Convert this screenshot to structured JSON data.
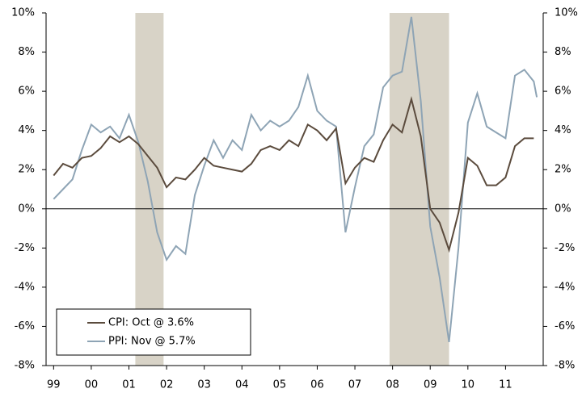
{
  "chart_data": {
    "type": "line",
    "x": [
      1999.0,
      1999.25,
      1999.5,
      1999.75,
      2000.0,
      2000.25,
      2000.5,
      2000.75,
      2001.0,
      2001.25,
      2001.5,
      2001.75,
      2002.0,
      2002.25,
      2002.5,
      2002.75,
      2003.0,
      2003.25,
      2003.5,
      2003.75,
      2004.0,
      2004.25,
      2004.5,
      2004.75,
      2005.0,
      2005.25,
      2005.5,
      2005.75,
      2006.0,
      2006.25,
      2006.5,
      2006.75,
      2007.0,
      2007.25,
      2007.5,
      2007.75,
      2008.0,
      2008.25,
      2008.5,
      2008.75,
      2009.0,
      2009.25,
      2009.5,
      2009.75,
      2010.0,
      2010.25,
      2010.5,
      2010.75,
      2011.0,
      2011.25,
      2011.5,
      2011.75,
      2011.83
    ],
    "series": [
      {
        "name": "CPI: Oct @ 3.6%",
        "color": "#5b4b3d",
        "values": [
          1.7,
          2.3,
          2.1,
          2.6,
          2.7,
          3.1,
          3.7,
          3.4,
          3.7,
          3.3,
          2.7,
          2.1,
          1.1,
          1.6,
          1.5,
          2.0,
          2.6,
          2.2,
          2.1,
          2.0,
          1.9,
          2.3,
          3.0,
          3.2,
          3.0,
          3.5,
          3.2,
          4.3,
          4.0,
          3.5,
          4.1,
          1.3,
          2.1,
          2.6,
          2.4,
          3.5,
          4.3,
          3.9,
          5.6,
          3.7,
          0.0,
          -0.7,
          -2.1,
          -0.2,
          2.6,
          2.2,
          1.2,
          1.2,
          1.6,
          3.2,
          3.6,
          3.6,
          null
        ]
      },
      {
        "name": "PPI: Nov @ 5.7%",
        "color": "#8ea4b5",
        "values": [
          0.5,
          1.0,
          1.5,
          3.0,
          4.3,
          3.9,
          4.2,
          3.6,
          4.8,
          3.4,
          1.4,
          -1.2,
          -2.6,
          -1.9,
          -2.3,
          0.7,
          2.2,
          3.5,
          2.6,
          3.5,
          3.0,
          4.8,
          4.0,
          4.5,
          4.2,
          4.5,
          5.2,
          6.8,
          5.0,
          4.5,
          4.2,
          -1.2,
          1.1,
          3.2,
          3.8,
          6.2,
          6.8,
          7.0,
          9.8,
          5.5,
          -0.9,
          -3.5,
          -6.8,
          -2.0,
          4.4,
          5.9,
          4.2,
          3.9,
          3.6,
          6.8,
          7.1,
          6.5,
          5.7
        ]
      }
    ],
    "shaded_periods": [
      [
        2001.17,
        2001.92
      ],
      [
        2007.92,
        2009.5
      ]
    ],
    "shade_color": "#d8d3c7",
    "xlim": [
      1998.8,
      2012.0
    ],
    "xticks": [
      {
        "value": 1999,
        "label": "99"
      },
      {
        "value": 2000,
        "label": "00"
      },
      {
        "value": 2001,
        "label": "01"
      },
      {
        "value": 2002,
        "label": "02"
      },
      {
        "value": 2003,
        "label": "03"
      },
      {
        "value": 2004,
        "label": "04"
      },
      {
        "value": 2005,
        "label": "05"
      },
      {
        "value": 2006,
        "label": "06"
      },
      {
        "value": 2007,
        "label": "07"
      },
      {
        "value": 2008,
        "label": "08"
      },
      {
        "value": 2009,
        "label": "09"
      },
      {
        "value": 2010,
        "label": "10"
      },
      {
        "value": 2011,
        "label": "11"
      }
    ],
    "ylim": [
      -8,
      10
    ],
    "yticks": [
      {
        "value": -8,
        "label": "-8%"
      },
      {
        "value": -6,
        "label": "-6%"
      },
      {
        "value": -4,
        "label": "-4%"
      },
      {
        "value": -2,
        "label": "-2%"
      },
      {
        "value": 0,
        "label": "0%"
      },
      {
        "value": 2,
        "label": "2%"
      },
      {
        "value": 4,
        "label": "4%"
      },
      {
        "value": 6,
        "label": "6%"
      },
      {
        "value": 8,
        "label": "8%"
      },
      {
        "value": 10,
        "label": "10%"
      }
    ],
    "legend": "lower left"
  }
}
